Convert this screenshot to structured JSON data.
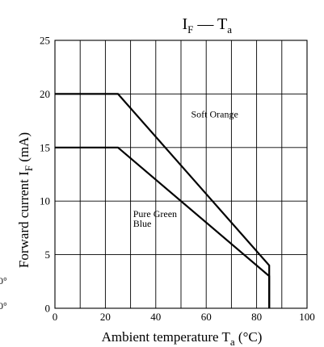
{
  "chart_data": {
    "type": "line",
    "title": {
      "a": "I",
      "a_sub": "F",
      "dash": " — ",
      "b": "T",
      "b_sub": "a"
    },
    "xlabel": {
      "text": "Ambient temperature  T",
      "sub": "a",
      "unit": " (°C)"
    },
    "ylabel": {
      "text": "Forward current  I",
      "sub": "F",
      "unit": "  (mA)"
    },
    "xlim": [
      0,
      100
    ],
    "ylim": [
      0,
      25
    ],
    "xticks": [
      0,
      20,
      40,
      60,
      80,
      100
    ],
    "yticks": [
      0,
      5,
      10,
      15,
      20,
      25
    ],
    "grid": true,
    "series": [
      {
        "name": "Soft Orange",
        "x": [
          0,
          25,
          85,
          85
        ],
        "y": [
          20,
          20,
          4,
          0
        ]
      },
      {
        "name": "Pure Green\nBlue",
        "x": [
          0,
          25,
          85,
          85
        ],
        "y": [
          15,
          15,
          3,
          0
        ]
      }
    ],
    "edge_fragments": [
      "0°",
      "0°"
    ]
  }
}
